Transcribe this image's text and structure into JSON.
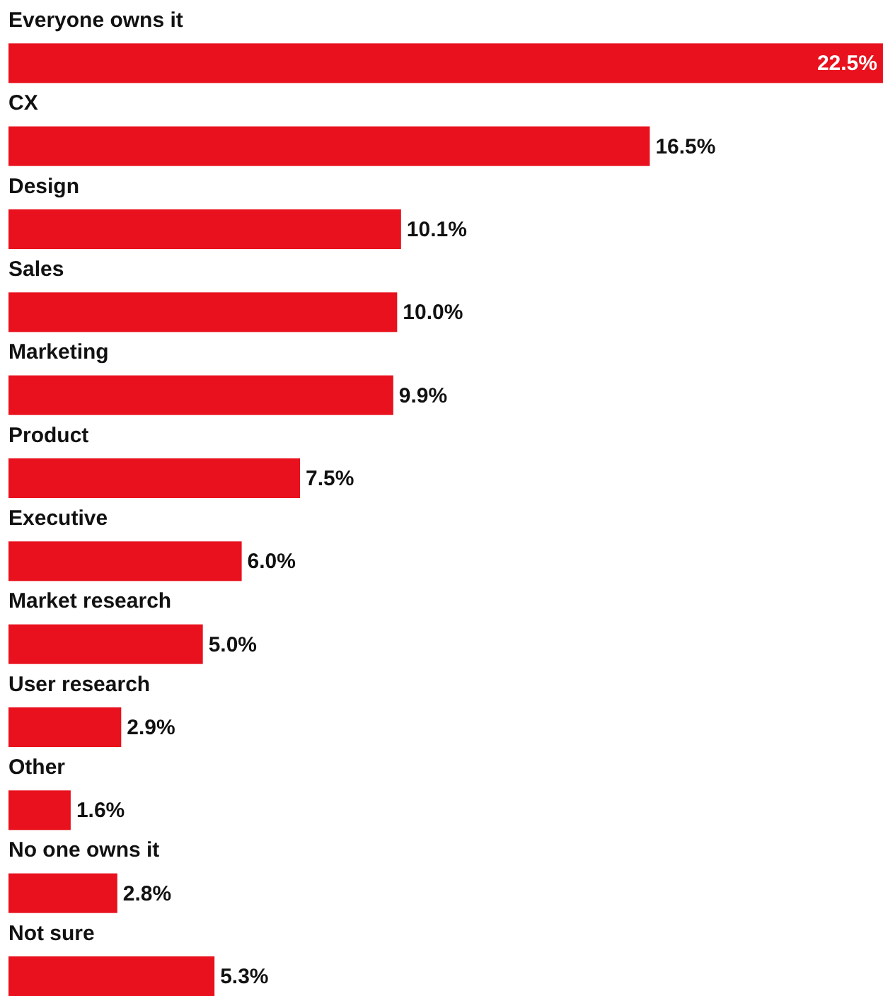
{
  "chart_data": {
    "type": "bar",
    "orientation": "horizontal",
    "color": "#e8111d",
    "categories": [
      "Everyone owns it",
      "CX",
      "Design",
      "Sales",
      "Marketing",
      "Product",
      "Executive",
      "Market research",
      "User research",
      "Other",
      "No one owns it",
      "Not sure"
    ],
    "values": [
      22.5,
      16.5,
      10.1,
      10.0,
      9.9,
      7.5,
      6.0,
      5.0,
      2.9,
      1.6,
      2.8,
      5.3
    ],
    "value_labels": [
      "22.5%",
      "16.5%",
      "10.1%",
      "10.0%",
      "9.9%",
      "7.5%",
      "6.0%",
      "5.0%",
      "2.9%",
      "1.6%",
      "2.8%",
      "5.3%"
    ]
  }
}
